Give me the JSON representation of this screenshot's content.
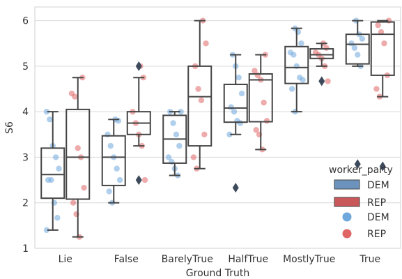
{
  "chart_data": {
    "type": "box",
    "xlabel": "Ground Truth",
    "ylabel": "S6",
    "ylim": [
      1,
      6.3
    ],
    "y_ticks": [
      1,
      2,
      3,
      4,
      5,
      6
    ],
    "categories": [
      "Lie",
      "False",
      "BarelyTrue",
      "HalfTrue",
      "MostlyTrue",
      "True"
    ],
    "grid": true,
    "legend": {
      "title": "worker_party",
      "placement": "right",
      "box_entries": [
        "DEM",
        "REP"
      ],
      "point_entries": [
        "DEM",
        "REP"
      ]
    },
    "colors": {
      "DEM_box": "#6b93bd",
      "REP_box": "#c9585b",
      "DEM_point": "#6fa8dc",
      "REP_point": "#e06666",
      "box_line": "#444444",
      "grid": "#d9d9d9"
    },
    "series": [
      {
        "name": "DEM",
        "boxes": [
          {
            "category": "Lie",
            "whisker_low": 1.4,
            "q1": 2.1,
            "median": 2.62,
            "q3": 3.2,
            "whisker_high": 4.0,
            "outliers": []
          },
          {
            "category": "False",
            "whisker_low": 2.0,
            "q1": 2.38,
            "median": 3.0,
            "q3": 3.47,
            "whisker_high": 3.83,
            "outliers": []
          },
          {
            "category": "BarelyTrue",
            "whisker_low": 2.6,
            "q1": 2.87,
            "median": 3.4,
            "q3": 3.92,
            "whisker_high": 4.0,
            "outliers": []
          },
          {
            "category": "HalfTrue",
            "whisker_low": 3.5,
            "q1": 3.77,
            "median": 4.08,
            "q3": 4.6,
            "whisker_high": 5.25,
            "outliers": [
              2.33
            ]
          },
          {
            "category": "MostlyTrue",
            "whisker_low": 4.0,
            "q1": 4.62,
            "median": 4.97,
            "q3": 5.43,
            "whisker_high": 5.83,
            "outliers": []
          },
          {
            "category": "True",
            "whisker_low": 5.0,
            "q1": 5.05,
            "median": 5.48,
            "q3": 5.7,
            "whisker_high": 6.0,
            "outliers": [
              2.85
            ]
          }
        ],
        "points": [
          [
            1.4,
            1.67,
            2.0,
            2.5,
            2.5,
            2.75,
            3.0,
            3.25,
            3.83,
            4.0
          ],
          [
            2.0,
            2.25,
            2.5,
            2.75,
            3.0,
            3.25,
            3.5,
            3.8,
            3.83
          ],
          [
            2.6,
            2.75,
            2.9,
            3.0,
            3.25,
            3.5,
            3.75,
            4.0,
            4.0
          ],
          [
            3.5,
            3.75,
            3.8,
            4.0,
            4.1,
            4.4,
            4.75,
            5.0,
            5.25
          ],
          [
            4.0,
            4.5,
            4.7,
            4.75,
            5.0,
            5.25,
            5.3,
            5.5,
            5.75,
            5.83
          ],
          [
            5.0,
            5.25,
            5.4,
            5.5,
            5.6,
            5.7,
            6.0
          ]
        ]
      },
      {
        "name": "REP",
        "boxes": [
          {
            "category": "Lie",
            "whisker_low": 1.25,
            "q1": 2.08,
            "median": 3.0,
            "q3": 4.05,
            "whisker_high": 4.75,
            "outliers": []
          },
          {
            "category": "False",
            "whisker_low": 3.25,
            "q1": 3.5,
            "median": 3.75,
            "q3": 4.0,
            "whisker_high": 4.75,
            "outliers": [
              2.5,
              5.0
            ]
          },
          {
            "category": "BarelyTrue",
            "whisker_low": 2.75,
            "q1": 3.25,
            "median": 4.33,
            "q3": 5.0,
            "whisker_high": 6.0,
            "outliers": []
          },
          {
            "category": "HalfTrue",
            "whisker_low": 3.17,
            "q1": 3.78,
            "median": 4.7,
            "q3": 4.83,
            "whisker_high": 5.25,
            "outliers": []
          },
          {
            "category": "MostlyTrue",
            "whisker_low": 5.0,
            "q1": 5.17,
            "median": 5.25,
            "q3": 5.38,
            "whisker_high": 5.5,
            "outliers": [
              4.67
            ]
          },
          {
            "category": "True",
            "whisker_low": 4.33,
            "q1": 4.8,
            "median": 5.7,
            "q3": 5.97,
            "whisker_high": 6.0,
            "outliers": [
              2.8
            ]
          }
        ],
        "points": [
          [
            1.25,
            1.75,
            2.0,
            2.33,
            3.0,
            3.2,
            4.33,
            4.4,
            4.75
          ],
          [
            2.5,
            3.25,
            3.5,
            3.75,
            4.0,
            4.75,
            5.0
          ],
          [
            2.75,
            3.0,
            3.5,
            4.25,
            4.5,
            5.0,
            5.5,
            6.0
          ],
          [
            3.17,
            3.5,
            3.6,
            3.8,
            4.2,
            4.7,
            4.8,
            4.9,
            5.25
          ],
          [
            4.67,
            5.0,
            5.17,
            5.25,
            5.3,
            5.4,
            5.5
          ],
          [
            4.33,
            4.5,
            4.8,
            5.5,
            5.75,
            5.9,
            6.0
          ]
        ]
      }
    ]
  }
}
